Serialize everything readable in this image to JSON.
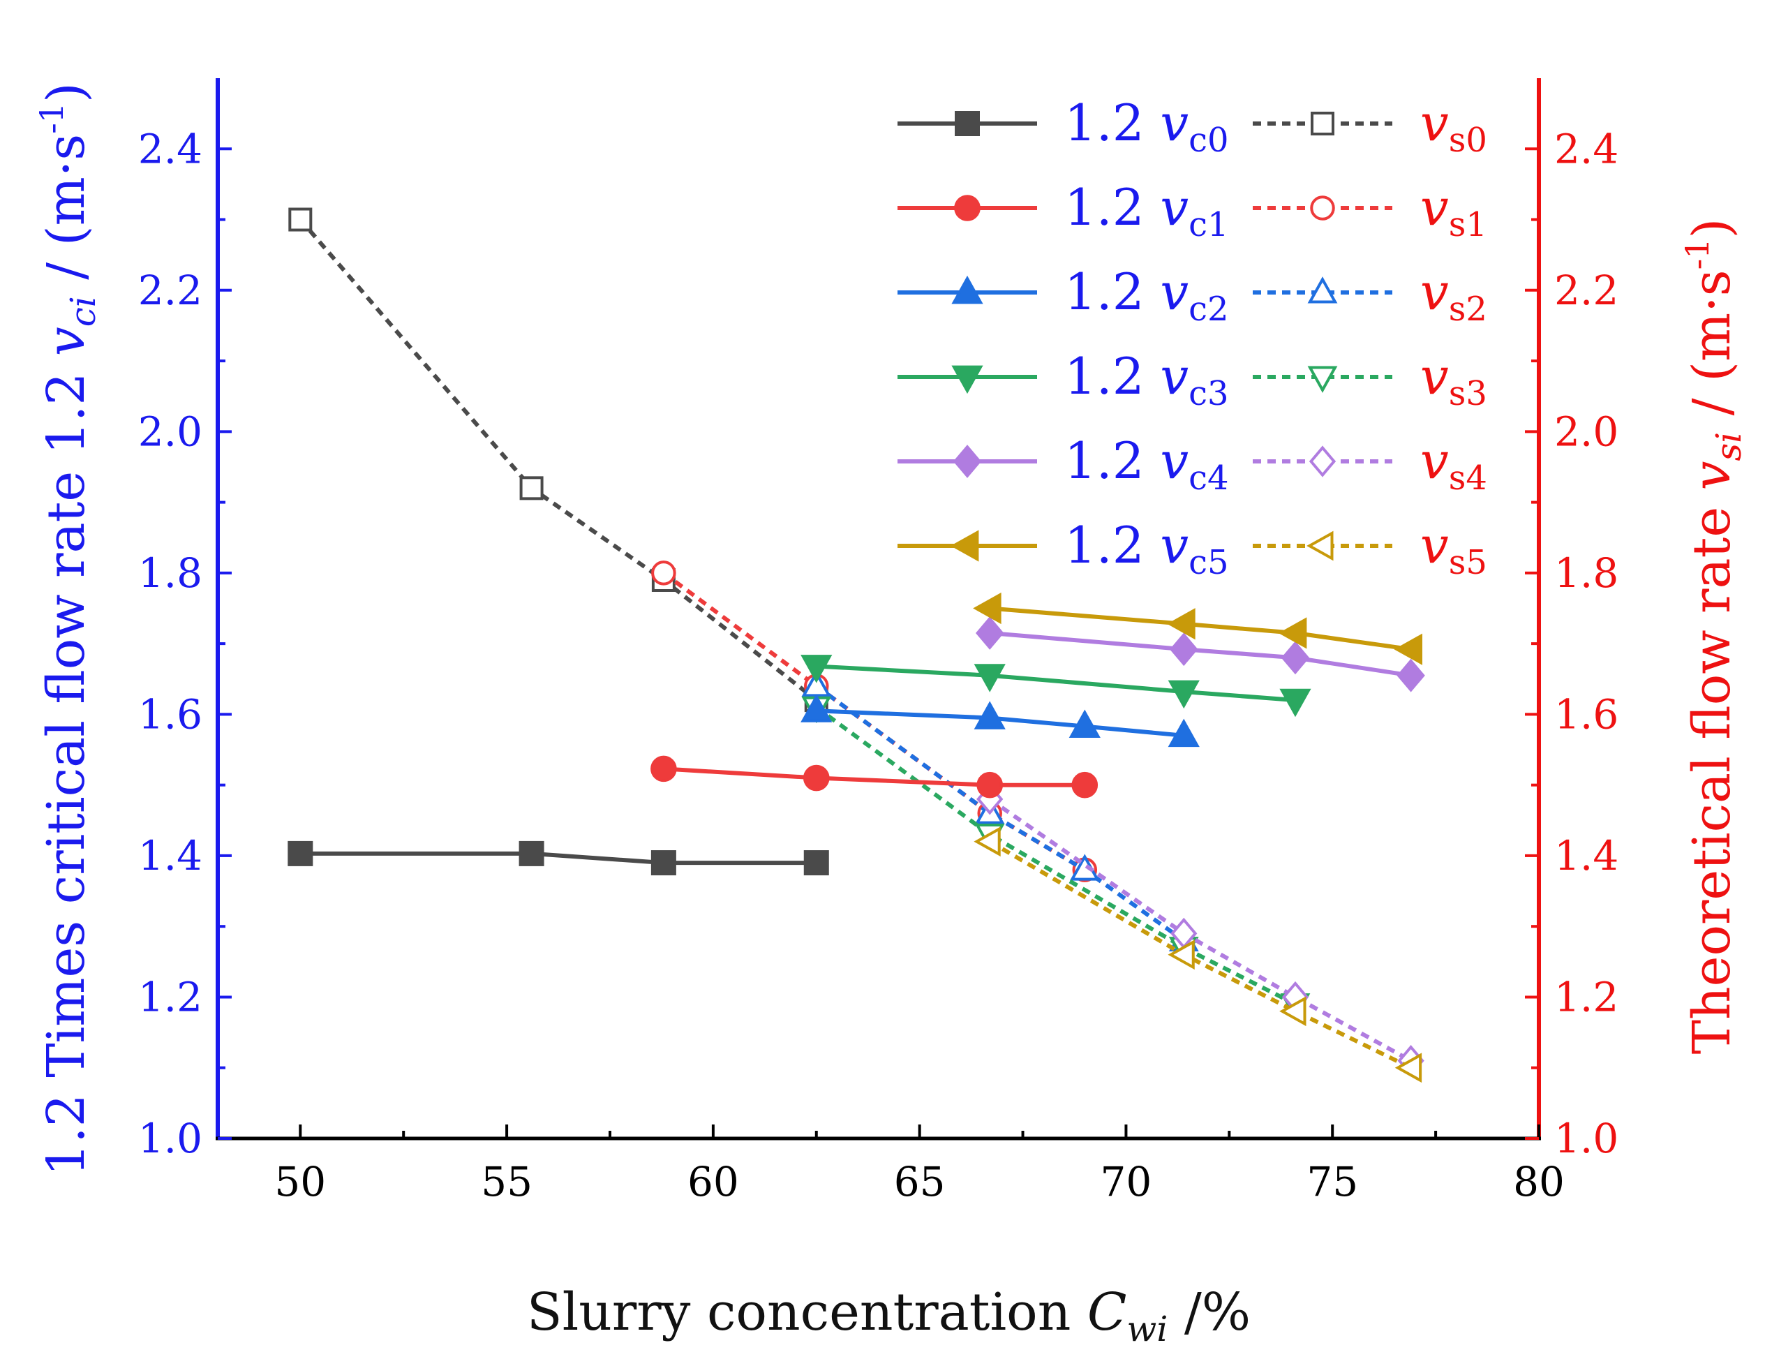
{
  "chart_data": {
    "type": "line",
    "xlabel": {
      "main": "Slurry concentration ",
      "sym": "C",
      "sub": "wi",
      "unit": " /%"
    },
    "ylabel_left": {
      "main": "1.2 Times critical flow rate 1.2 ",
      "sym": "v",
      "sub": "ci",
      "unit_pre": " / (m·s",
      "sup": "-1",
      "unit_post": ")"
    },
    "ylabel_right": {
      "main": "Theoretical flow rate ",
      "sym": "v",
      "sub": "si",
      "unit_pre": " / (m·s",
      "sup": "-1",
      "unit_post": ")"
    },
    "xlim": [
      48,
      80
    ],
    "ylim": [
      1.0,
      2.5
    ],
    "x_ticks": [
      "50",
      "55",
      "60",
      "65",
      "70",
      "75",
      "80"
    ],
    "y_ticks": [
      "1.0",
      "1.2",
      "1.4",
      "1.6",
      "1.8",
      "2.0",
      "2.2",
      "2.4"
    ],
    "colors": {
      "left_axis": "#1a1aee",
      "right_axis": "#ee1111",
      "bottom_axis": "#000000",
      "c0": "#4a4a4a",
      "c1": "#ee3b3b",
      "c2": "#1f6fe0",
      "c3": "#2aa860",
      "c4": "#b07ce0",
      "c5": "#c89a0a"
    },
    "series": [
      {
        "name": "1.2 vc0",
        "prefix": "1.2 ",
        "sym": "v",
        "sub": "c0",
        "colorKey": "c0",
        "marker": "square",
        "filled": true,
        "dashed": false,
        "x": [
          50.0,
          55.6,
          58.8,
          62.5
        ],
        "y": [
          1.403,
          1.403,
          1.39,
          1.39
        ]
      },
      {
        "name": "1.2 vc1",
        "prefix": "1.2 ",
        "sym": "v",
        "sub": "c1",
        "colorKey": "c1",
        "marker": "circle",
        "filled": true,
        "dashed": false,
        "x": [
          58.8,
          62.5,
          66.7,
          69.0
        ],
        "y": [
          1.523,
          1.51,
          1.5,
          1.5
        ]
      },
      {
        "name": "1.2 vc2",
        "prefix": "1.2 ",
        "sym": "v",
        "sub": "c2",
        "colorKey": "c2",
        "marker": "triangle-up",
        "filled": true,
        "dashed": false,
        "x": [
          62.5,
          66.7,
          69.0,
          71.4
        ],
        "y": [
          1.605,
          1.595,
          1.583,
          1.57
        ]
      },
      {
        "name": "1.2 vc3",
        "prefix": "1.2 ",
        "sym": "v",
        "sub": "c3",
        "colorKey": "c3",
        "marker": "triangle-down",
        "filled": true,
        "dashed": false,
        "x": [
          62.5,
          66.7,
          71.4,
          74.1
        ],
        "y": [
          1.668,
          1.655,
          1.632,
          1.62
        ]
      },
      {
        "name": "1.2 vc4",
        "prefix": "1.2 ",
        "sym": "v",
        "sub": "c4",
        "colorKey": "c4",
        "marker": "diamond",
        "filled": true,
        "dashed": false,
        "x": [
          66.7,
          71.4,
          74.1,
          76.9
        ],
        "y": [
          1.715,
          1.692,
          1.68,
          1.655
        ]
      },
      {
        "name": "1.2 vc5",
        "prefix": "1.2 ",
        "sym": "v",
        "sub": "c5",
        "colorKey": "c5",
        "marker": "triangle-left",
        "filled": true,
        "dashed": false,
        "x": [
          66.7,
          71.4,
          74.1,
          76.9
        ],
        "y": [
          1.75,
          1.728,
          1.715,
          1.692
        ]
      },
      {
        "name": "vs0",
        "prefix": "",
        "sym": "v",
        "sub": "s0",
        "colorKey": "c0",
        "marker": "square",
        "filled": false,
        "dashed": true,
        "x": [
          50.0,
          55.6,
          58.8,
          62.5
        ],
        "y": [
          2.3,
          1.92,
          1.79,
          1.62
        ]
      },
      {
        "name": "vs1",
        "prefix": "",
        "sym": "v",
        "sub": "s1",
        "colorKey": "c1",
        "marker": "circle",
        "filled": false,
        "dashed": true,
        "x": [
          58.8,
          62.5,
          66.7,
          69.0
        ],
        "y": [
          1.8,
          1.64,
          1.46,
          1.38
        ]
      },
      {
        "name": "vs2",
        "prefix": "",
        "sym": "v",
        "sub": "s2",
        "colorKey": "c2",
        "marker": "triangle-up",
        "filled": false,
        "dashed": true,
        "x": [
          62.5,
          66.7,
          69.0,
          71.4
        ],
        "y": [
          1.64,
          1.46,
          1.38,
          1.28
        ]
      },
      {
        "name": "vs3",
        "prefix": "",
        "sym": "v",
        "sub": "s3",
        "colorKey": "c3",
        "marker": "triangle-down",
        "filled": false,
        "dashed": true,
        "x": [
          62.5,
          66.7,
          71.4,
          74.1
        ],
        "y": [
          1.61,
          1.43,
          1.27,
          1.19
        ]
      },
      {
        "name": "vs4",
        "prefix": "",
        "sym": "v",
        "sub": "s4",
        "colorKey": "c4",
        "marker": "diamond",
        "filled": false,
        "dashed": true,
        "x": [
          66.7,
          71.4,
          74.1,
          76.9
        ],
        "y": [
          1.48,
          1.29,
          1.2,
          1.11
        ]
      },
      {
        "name": "vs5",
        "prefix": "",
        "sym": "v",
        "sub": "s5",
        "colorKey": "c5",
        "marker": "triangle-left",
        "filled": false,
        "dashed": true,
        "x": [
          66.7,
          71.4,
          74.1,
          76.9
        ],
        "y": [
          1.42,
          1.26,
          1.18,
          1.1
        ]
      }
    ],
    "legend": {
      "placement": "top-right",
      "columns": 2
    },
    "grid": false
  }
}
